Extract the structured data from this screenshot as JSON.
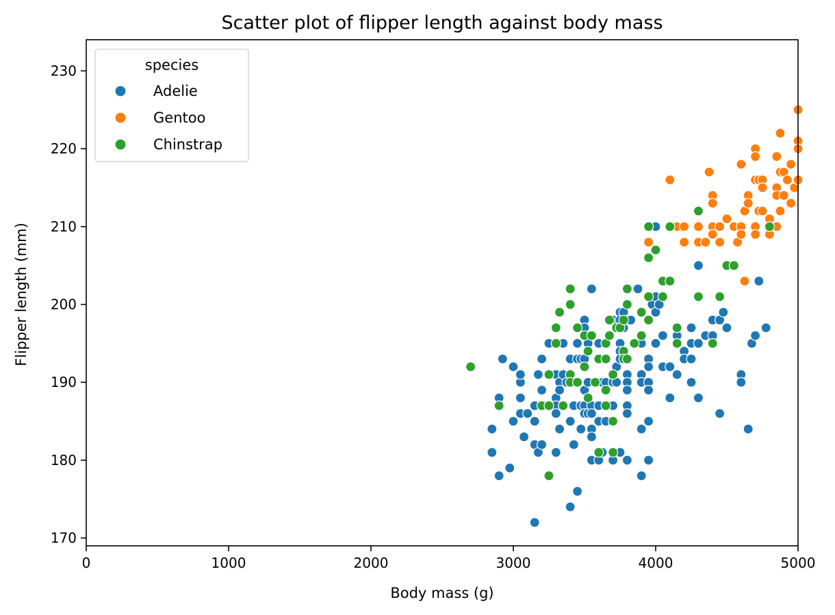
{
  "chart_data": {
    "type": "scatter",
    "title": "Scatter plot of flipper length against body mass",
    "xlabel": "Body mass (g)",
    "ylabel": "Flipper length (mm)",
    "xlim": [
      0,
      5000
    ],
    "ylim": [
      169,
      234
    ],
    "xticks": [
      0,
      1000,
      2000,
      3000,
      4000,
      5000
    ],
    "yticks": [
      170,
      180,
      190,
      200,
      210,
      220,
      230
    ],
    "grid": false,
    "legend": {
      "title": "species",
      "position": "top-left"
    },
    "series": [
      {
        "name": "Adelie",
        "color": "#1f77b4",
        "points": [
          [
            2850,
            184
          ],
          [
            2850,
            181
          ],
          [
            2900,
            178
          ],
          [
            2900,
            188
          ],
          [
            2925,
            193
          ],
          [
            2975,
            179
          ],
          [
            3000,
            185
          ],
          [
            3000,
            192
          ],
          [
            3050,
            190
          ],
          [
            3050,
            191
          ],
          [
            3050,
            188
          ],
          [
            3050,
            186
          ],
          [
            3075,
            183
          ],
          [
            3100,
            186
          ],
          [
            3150,
            187
          ],
          [
            3150,
            182
          ],
          [
            3150,
            185
          ],
          [
            3150,
            172
          ],
          [
            3175,
            181
          ],
          [
            3175,
            191
          ],
          [
            3200,
            193
          ],
          [
            3200,
            189
          ],
          [
            3200,
            187
          ],
          [
            3200,
            182
          ],
          [
            3250,
            195
          ],
          [
            3250,
            191
          ],
          [
            3250,
            187
          ],
          [
            3300,
            195
          ],
          [
            3300,
            191
          ],
          [
            3300,
            188
          ],
          [
            3300,
            187
          ],
          [
            3300,
            186
          ],
          [
            3300,
            181
          ],
          [
            3325,
            190
          ],
          [
            3325,
            189
          ],
          [
            3325,
            184
          ],
          [
            3350,
            195
          ],
          [
            3350,
            191
          ],
          [
            3350,
            187
          ],
          [
            3375,
            190
          ],
          [
            3400,
            193
          ],
          [
            3400,
            191
          ],
          [
            3400,
            190
          ],
          [
            3400,
            185
          ],
          [
            3400,
            174
          ],
          [
            3425,
            187
          ],
          [
            3425,
            182
          ],
          [
            3450,
            195
          ],
          [
            3450,
            193
          ],
          [
            3450,
            190
          ],
          [
            3450,
            176
          ],
          [
            3475,
            193
          ],
          [
            3475,
            187
          ],
          [
            3475,
            184
          ],
          [
            3500,
            198
          ],
          [
            3500,
            197
          ],
          [
            3500,
            193
          ],
          [
            3500,
            189
          ],
          [
            3500,
            187
          ],
          [
            3500,
            186
          ],
          [
            3525,
            195
          ],
          [
            3525,
            190
          ],
          [
            3525,
            186
          ],
          [
            3550,
            202
          ],
          [
            3550,
            187
          ],
          [
            3550,
            186
          ],
          [
            3550,
            184
          ],
          [
            3550,
            183
          ],
          [
            3550,
            180
          ],
          [
            3600,
            195
          ],
          [
            3600,
            190
          ],
          [
            3600,
            187
          ],
          [
            3600,
            185
          ],
          [
            3600,
            180
          ],
          [
            3625,
            190
          ],
          [
            3625,
            181
          ],
          [
            3650,
            195
          ],
          [
            3650,
            193
          ],
          [
            3650,
            190
          ],
          [
            3650,
            185
          ],
          [
            3675,
            198
          ],
          [
            3700,
            198
          ],
          [
            3700,
            191
          ],
          [
            3700,
            190
          ],
          [
            3700,
            187
          ],
          [
            3700,
            180
          ],
          [
            3725,
            192
          ],
          [
            3725,
            190
          ],
          [
            3750,
            199
          ],
          [
            3750,
            198
          ],
          [
            3750,
            195
          ],
          [
            3750,
            194
          ],
          [
            3750,
            193
          ],
          [
            3750,
            181
          ],
          [
            3775,
            199
          ],
          [
            3775,
            197
          ],
          [
            3800,
            198
          ],
          [
            3800,
            191
          ],
          [
            3800,
            190
          ],
          [
            3800,
            189
          ],
          [
            3800,
            187
          ],
          [
            3800,
            186
          ],
          [
            3800,
            180
          ],
          [
            3825,
            198
          ],
          [
            3875,
            202
          ],
          [
            3900,
            195
          ],
          [
            3900,
            191
          ],
          [
            3900,
            190
          ],
          [
            3900,
            184
          ],
          [
            3900,
            178
          ],
          [
            3950,
            193
          ],
          [
            3950,
            192
          ],
          [
            3950,
            190
          ],
          [
            3950,
            189
          ],
          [
            3950,
            185
          ],
          [
            3950,
            180
          ],
          [
            3975,
            200
          ],
          [
            4000,
            210
          ],
          [
            4000,
            201
          ],
          [
            4000,
            199
          ],
          [
            4000,
            195
          ],
          [
            4025,
            200
          ],
          [
            4050,
            196
          ],
          [
            4050,
            192
          ],
          [
            4100,
            192
          ],
          [
            4100,
            188
          ],
          [
            4150,
            196
          ],
          [
            4150,
            191
          ],
          [
            4200,
            194
          ],
          [
            4200,
            193
          ],
          [
            4250,
            197
          ],
          [
            4250,
            195
          ],
          [
            4250,
            193
          ],
          [
            4250,
            190
          ],
          [
            4300,
            205
          ],
          [
            4300,
            195
          ],
          [
            4300,
            188
          ],
          [
            4350,
            196
          ],
          [
            4400,
            198
          ],
          [
            4400,
            196
          ],
          [
            4450,
            198
          ],
          [
            4450,
            186
          ],
          [
            4475,
            199
          ],
          [
            4500,
            197
          ],
          [
            4600,
            191
          ],
          [
            4600,
            190
          ],
          [
            4650,
            184
          ],
          [
            4675,
            195
          ],
          [
            4700,
            196
          ],
          [
            4725,
            203
          ],
          [
            4775,
            197
          ]
        ]
      },
      {
        "name": "Gentoo",
        "color": "#ff7f0e",
        "points": [
          [
            3950,
            208
          ],
          [
            4100,
            216
          ],
          [
            4150,
            210
          ],
          [
            4200,
            210
          ],
          [
            4200,
            208
          ],
          [
            4300,
            210
          ],
          [
            4300,
            208
          ],
          [
            4350,
            208
          ],
          [
            4375,
            217
          ],
          [
            4400,
            214
          ],
          [
            4400,
            213
          ],
          [
            4400,
            210
          ],
          [
            4400,
            209
          ],
          [
            4450,
            210
          ],
          [
            4450,
            208
          ],
          [
            4500,
            211
          ],
          [
            4550,
            210
          ],
          [
            4575,
            208
          ],
          [
            4600,
            218
          ],
          [
            4600,
            210
          ],
          [
            4600,
            209
          ],
          [
            4625,
            212
          ],
          [
            4625,
            203
          ],
          [
            4650,
            214
          ],
          [
            4650,
            213
          ],
          [
            4700,
            220
          ],
          [
            4700,
            219
          ],
          [
            4700,
            216
          ],
          [
            4700,
            210
          ],
          [
            4700,
            209
          ],
          [
            4725,
            216
          ],
          [
            4725,
            212
          ],
          [
            4750,
            216
          ],
          [
            4750,
            215
          ],
          [
            4750,
            212
          ],
          [
            4800,
            211
          ],
          [
            4800,
            210
          ],
          [
            4800,
            209
          ],
          [
            4850,
            219
          ],
          [
            4850,
            215
          ],
          [
            4850,
            214
          ],
          [
            4850,
            210
          ],
          [
            4875,
            222
          ],
          [
            4875,
            217
          ],
          [
            4875,
            212
          ],
          [
            4900,
            217
          ],
          [
            4900,
            214
          ],
          [
            4925,
            216
          ],
          [
            4950,
            218
          ],
          [
            4950,
            213
          ],
          [
            4975,
            215
          ],
          [
            5000,
            225
          ],
          [
            5000,
            221
          ],
          [
            5000,
            220
          ],
          [
            5000,
            216
          ]
        ]
      },
      {
        "name": "Chinstrap",
        "color": "#2ca02c",
        "points": [
          [
            2700,
            192
          ],
          [
            2900,
            187
          ],
          [
            3200,
            187
          ],
          [
            3250,
            191
          ],
          [
            3250,
            187
          ],
          [
            3250,
            178
          ],
          [
            3300,
            197
          ],
          [
            3300,
            195
          ],
          [
            3325,
            199
          ],
          [
            3350,
            187
          ],
          [
            3400,
            202
          ],
          [
            3400,
            200
          ],
          [
            3400,
            191
          ],
          [
            3400,
            190
          ],
          [
            3450,
            197
          ],
          [
            3450,
            190
          ],
          [
            3500,
            196
          ],
          [
            3500,
            192
          ],
          [
            3525,
            194
          ],
          [
            3525,
            188
          ],
          [
            3550,
            196
          ],
          [
            3575,
            190
          ],
          [
            3600,
            193
          ],
          [
            3600,
            181
          ],
          [
            3650,
            195
          ],
          [
            3650,
            193
          ],
          [
            3650,
            189
          ],
          [
            3650,
            187
          ],
          [
            3675,
            198
          ],
          [
            3675,
            196
          ],
          [
            3700,
            191
          ],
          [
            3700,
            185
          ],
          [
            3700,
            181
          ],
          [
            3725,
            197
          ],
          [
            3750,
            197
          ],
          [
            3775,
            198
          ],
          [
            3775,
            194
          ],
          [
            3775,
            193
          ],
          [
            3800,
            202
          ],
          [
            3800,
            200
          ],
          [
            3800,
            193
          ],
          [
            3850,
            195
          ],
          [
            3900,
            199
          ],
          [
            3900,
            196
          ],
          [
            3950,
            210
          ],
          [
            3950,
            206
          ],
          [
            3950,
            201
          ],
          [
            3950,
            198
          ],
          [
            4000,
            207
          ],
          [
            4050,
            203
          ],
          [
            4050,
            201
          ],
          [
            4100,
            210
          ],
          [
            4100,
            203
          ],
          [
            4150,
            197
          ],
          [
            4150,
            195
          ],
          [
            4300,
            212
          ],
          [
            4300,
            201
          ],
          [
            4400,
            195
          ],
          [
            4450,
            201
          ],
          [
            4500,
            205
          ],
          [
            4550,
            205
          ],
          [
            4800,
            210
          ]
        ]
      }
    ]
  }
}
